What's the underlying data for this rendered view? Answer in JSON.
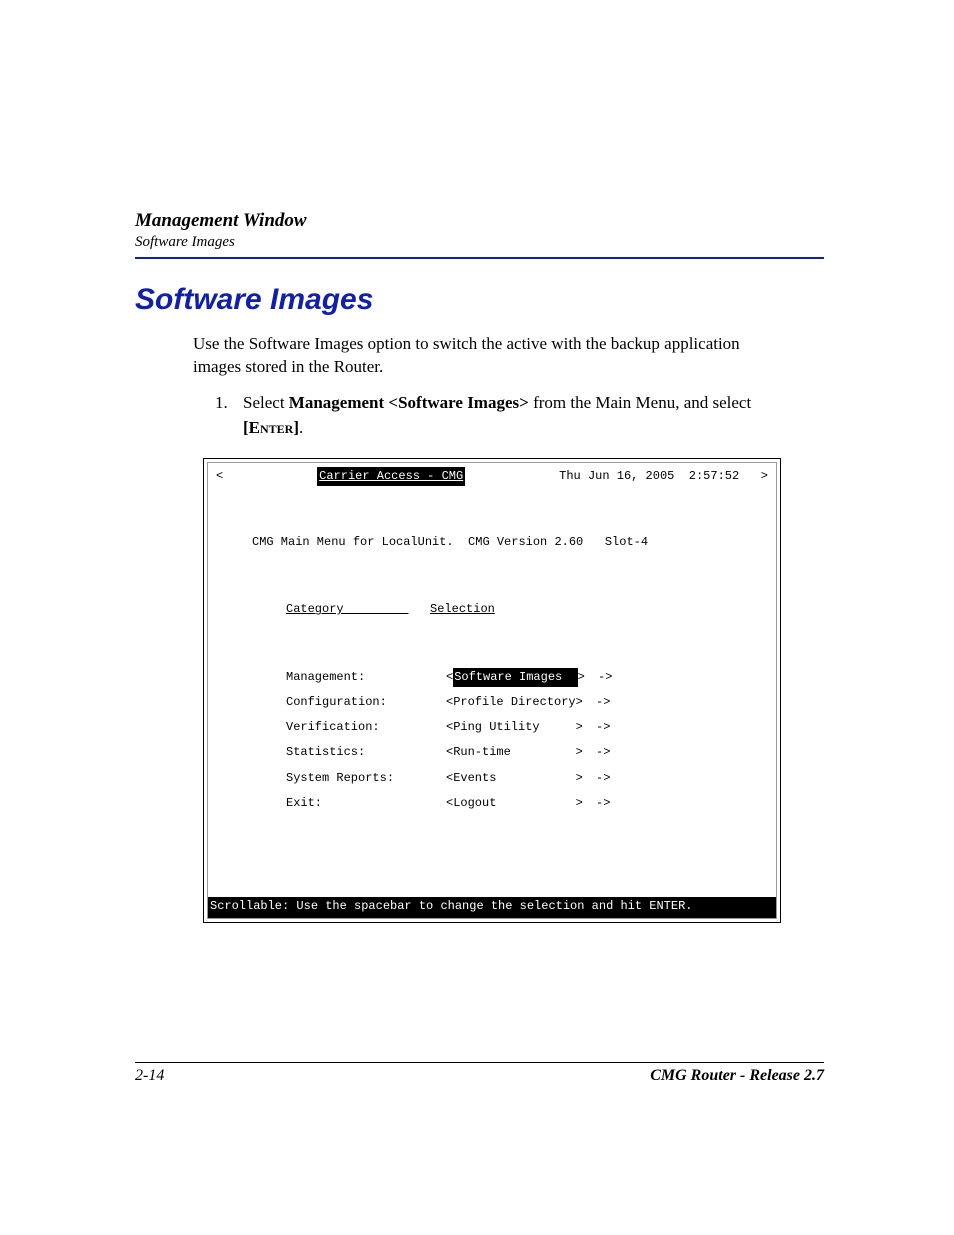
{
  "header": {
    "title": "Management Window",
    "subtitle": "Software Images"
  },
  "section_title": "Software Images",
  "intro": "Use the Software Images option to switch the active with the backup application images stored in the Router.",
  "step": {
    "number": "1.",
    "prefix": "Select ",
    "bold": "Management <Software Images>",
    "mid": " from the Main Menu, and select ",
    "key_open": "[",
    "key_text": "Enter",
    "key_close": "]",
    "tail": "."
  },
  "terminal": {
    "left_angle": "<",
    "title": "Carrier Access - CMG",
    "datetime": "Thu Jun 16, 2005  2:57:52",
    "right_angle": ">",
    "line2": "CMG Main Menu for LocalUnit.  CMG Version 2.60   Slot-4",
    "col1_header": "Category         ",
    "col2_header": "Selection",
    "rows": [
      {
        "category": "Management:",
        "value": "Software Images  ",
        "highlight": true
      },
      {
        "category": "Configuration:",
        "value": "Profile Directory",
        "highlight": false
      },
      {
        "category": "Verification:",
        "value": "Ping Utility     ",
        "highlight": false
      },
      {
        "category": "Statistics:",
        "value": "Run-time         ",
        "highlight": false
      },
      {
        "category": "System Reports:",
        "value": "Events           ",
        "highlight": false
      },
      {
        "category": "Exit:",
        "value": "Logout           ",
        "highlight": false
      }
    ],
    "sel_open": "<",
    "sel_close": ">",
    "arrow": "->",
    "footer": "Scrollable: Use the spacebar to change the selection and hit ENTER."
  },
  "footer": {
    "page_num": "2-14",
    "product": "CMG Router - Release 2.7"
  },
  "colors": {
    "accent_blue": "#1020aa",
    "text": "#000000",
    "bg": "#ffffff"
  }
}
